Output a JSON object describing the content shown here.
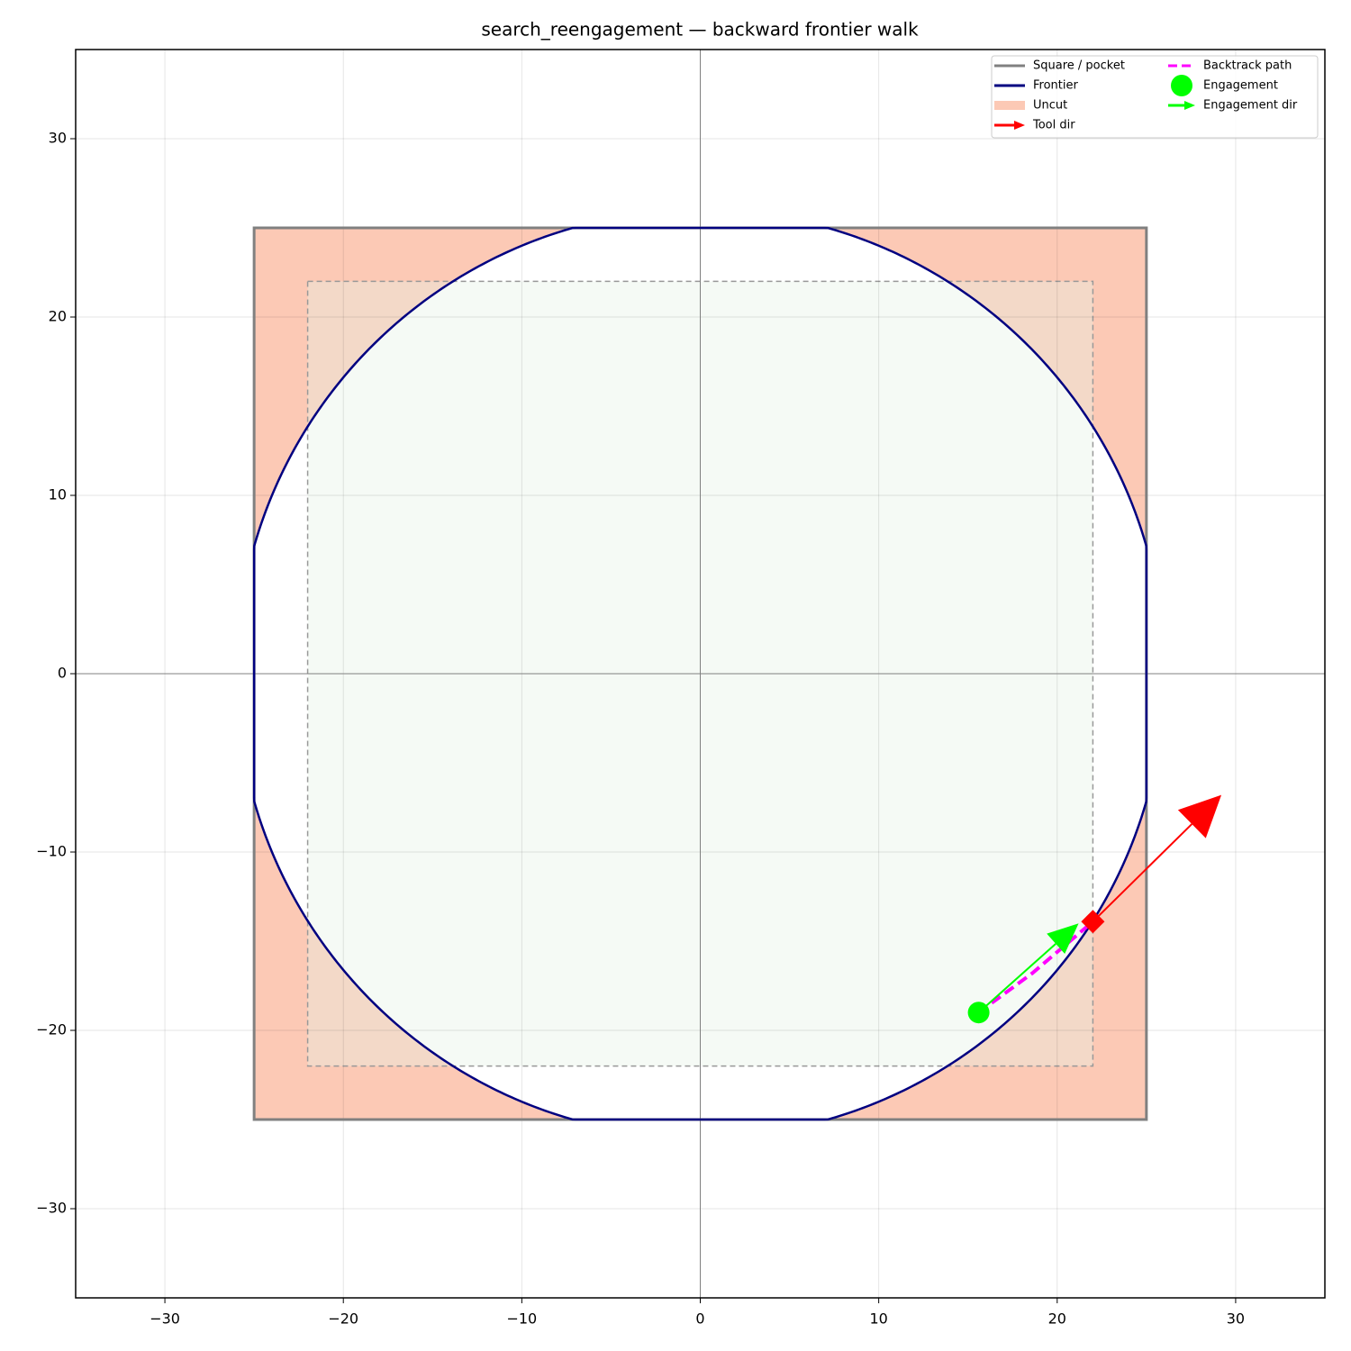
{
  "chart_data": {
    "type": "geometry",
    "title": "search_reengagement — backward frontier walk",
    "xlim": [
      -35,
      35
    ],
    "ylim": [
      -35,
      35
    ],
    "xticks": [
      {
        "value": -30,
        "label": "−30"
      },
      {
        "value": -20,
        "label": "−20"
      },
      {
        "value": -10,
        "label": "−10"
      },
      0,
      10,
      20,
      30
    ],
    "yticks": [
      {
        "value": -30,
        "label": "−30"
      },
      {
        "value": -20,
        "label": "−20"
      },
      {
        "value": -10,
        "label": "−10"
      },
      0,
      10,
      20,
      30
    ],
    "grid": true,
    "zero_lines": true,
    "legend": "upper right",
    "legend_columns": 2,
    "inner_square": {
      "x": [
        -22,
        22
      ],
      "y": [
        -22,
        22
      ],
      "color": "#e6f2e6"
    },
    "series": [
      {
        "name": "Square / pocket",
        "style": "line",
        "color": "#808080",
        "x": [
          -25,
          25,
          25,
          -25,
          -25
        ],
        "y": [
          -25,
          -25,
          25,
          25,
          -25
        ]
      },
      {
        "name": "Frontier",
        "style": "circle",
        "color": "#000080",
        "radius": 26
      },
      {
        "name": "Uncut",
        "style": "area",
        "color": "#fcc9b5"
      },
      {
        "name": "Tool dir",
        "style": "arrow",
        "color": "#ff0000",
        "x": [
          22.0,
          29.2
        ],
        "y": [
          -13.9,
          -6.8
        ]
      },
      {
        "name": "Backtrack path",
        "style": "dashed",
        "color": "#ff00ff",
        "x": [
          15.6,
          18.6,
          22.0
        ],
        "y": [
          -19.0,
          -16.8,
          -13.9
        ]
      },
      {
        "name": "Engagement",
        "style": "point",
        "color": "#00ff00",
        "x": [
          15.6
        ],
        "y": [
          -19.0
        ]
      },
      {
        "name": "Engagement dir",
        "style": "arrow",
        "color": "#00ff00",
        "x": [
          15.6,
          21.2
        ],
        "y": [
          -19.0,
          -14.0
        ]
      }
    ]
  }
}
